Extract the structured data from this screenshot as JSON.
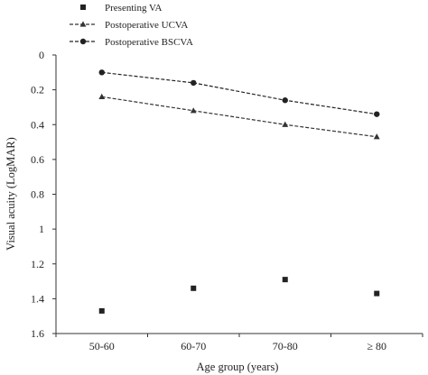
{
  "chart_data": {
    "type": "line",
    "title": "",
    "xlabel": "Age group (years)",
    "ylabel": "Visual acuity (LogMAR)",
    "categories": [
      "50-60",
      "60-70",
      "70-80",
      "≥ 80"
    ],
    "ylim": [
      0,
      1.6
    ],
    "y_inverted": true,
    "yticks": [
      "0",
      "0.2",
      "0.4",
      "0.6",
      "0.8",
      "1",
      "1.2",
      "1.4",
      "1.6"
    ],
    "grid": false,
    "legend_position": "top-left",
    "series": [
      {
        "name": "Presenting VA",
        "marker": "square",
        "line": "none",
        "color": "#222222",
        "values": [
          1.47,
          1.34,
          1.29,
          1.37
        ]
      },
      {
        "name": "Postoperative UCVA",
        "marker": "triangle",
        "line": "dashed",
        "color": "#333333",
        "values": [
          0.24,
          0.32,
          0.4,
          0.47
        ]
      },
      {
        "name": "Postoperative BSCVA",
        "marker": "circle",
        "line": "dashed",
        "color": "#222222",
        "values": [
          0.1,
          0.16,
          0.26,
          0.34
        ]
      }
    ]
  }
}
